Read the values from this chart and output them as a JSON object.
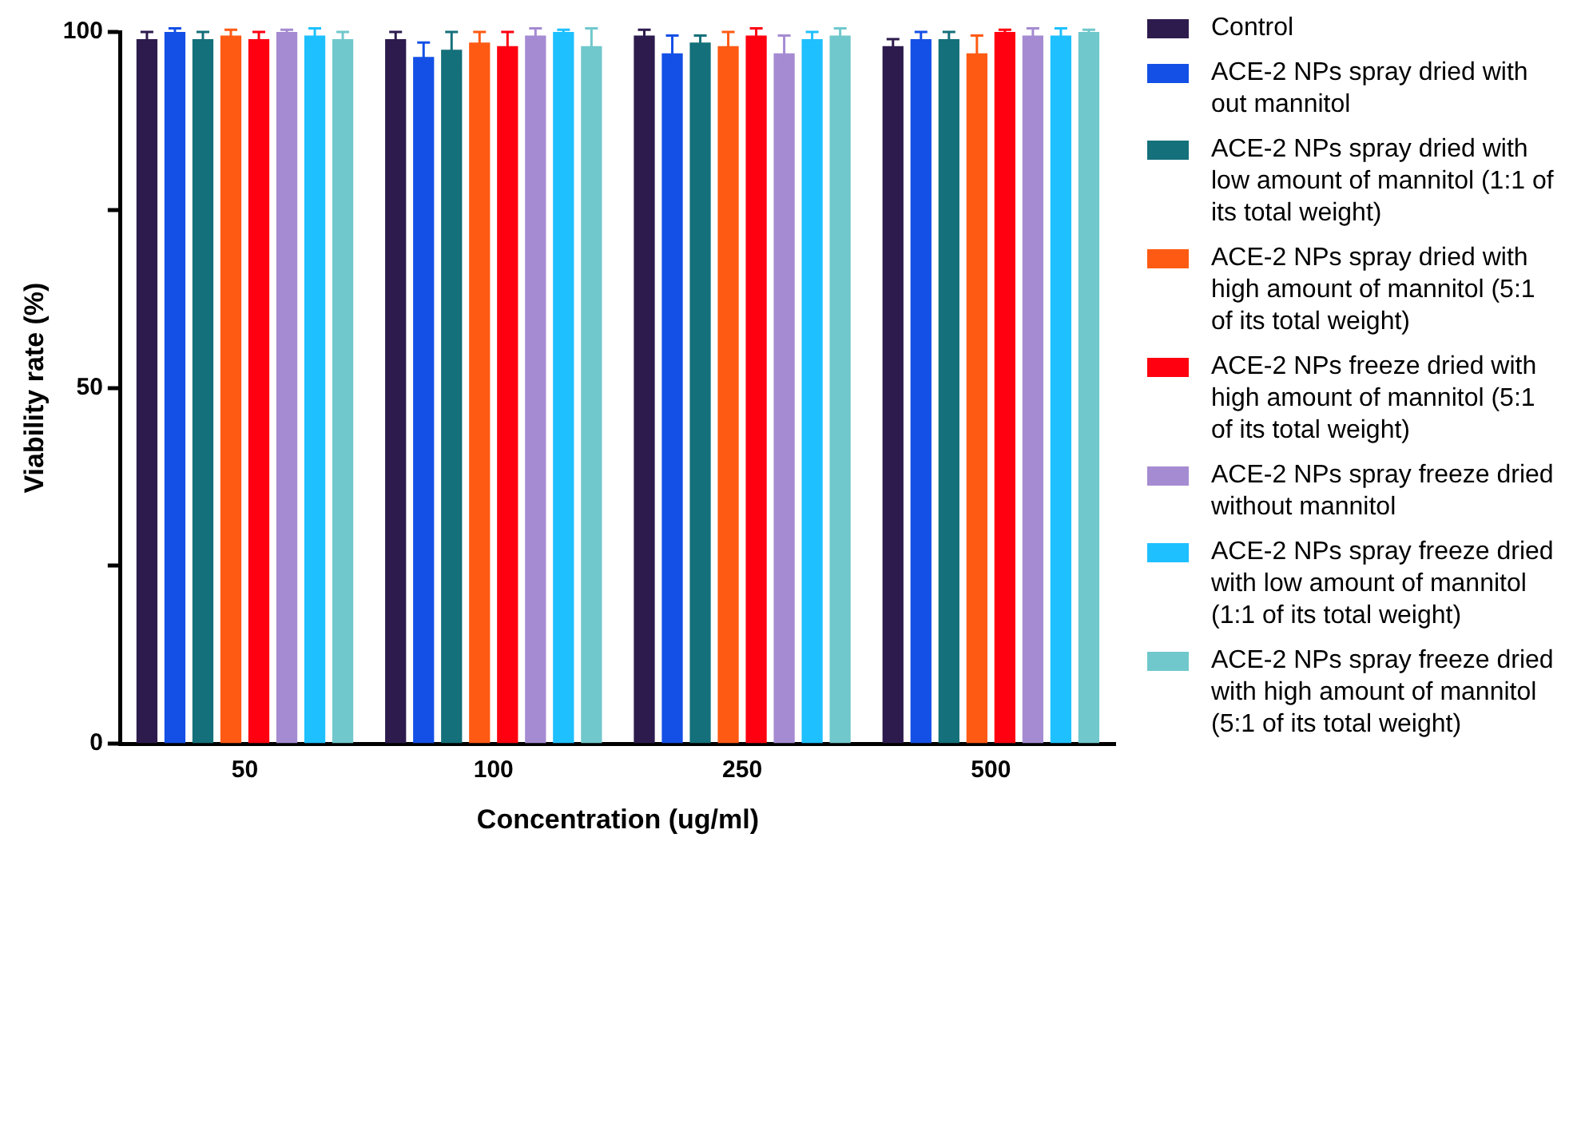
{
  "chart_data": {
    "type": "bar",
    "xlabel": "Concentration (ug/ml)",
    "ylabel": "Viability rate (%)",
    "categories": [
      "50",
      "100",
      "250",
      "500"
    ],
    "ylim": [
      0,
      100
    ],
    "yticks": [
      0,
      {
        "value": 25,
        "label": null
      },
      50,
      {
        "value": 75,
        "label": null
      },
      100
    ],
    "grid": false,
    "legend": "right",
    "series": [
      {
        "name": "Control",
        "color": "#2d1b4e",
        "values": [
          99,
          99,
          99.5,
          98
        ],
        "errors": [
          1,
          1,
          0.8,
          1
        ]
      },
      {
        "name": "ACE-2 NPs spray dried with out mannitol",
        "color": "#1450e6",
        "values": [
          100,
          96.5,
          97,
          99
        ],
        "errors": [
          0.5,
          2,
          2.5,
          1
        ]
      },
      {
        "name": "ACE-2 NPs spray dried with low amount of mannitol (1:1 of its total weight)",
        "color": "#14707a",
        "values": [
          99,
          97.5,
          98.5,
          99
        ],
        "errors": [
          1,
          2.5,
          1,
          1
        ]
      },
      {
        "name": "ACE-2 NPs spray dried with high amount of mannitol (5:1 of its total weight)",
        "color": "#ff5a14",
        "values": [
          99.5,
          98.5,
          98,
          97
        ],
        "errors": [
          0.8,
          1.5,
          2,
          2.5
        ]
      },
      {
        "name": "ACE-2 NPs freeze dried with high amount of mannitol (5:1 of its total weight)",
        "color": "#ff0010",
        "values": [
          99,
          98,
          99.5,
          100
        ],
        "errors": [
          1,
          2,
          1,
          0.3
        ]
      },
      {
        "name": "ACE-2 NPs spray freeze dried without mannitol",
        "color": "#a58bd2",
        "values": [
          100,
          99.5,
          97,
          99.5
        ],
        "errors": [
          0.3,
          1,
          2.5,
          1
        ]
      },
      {
        "name": "ACE-2 NPs spray freeze dried with low amount of mannitol (1:1 of its total weight)",
        "color": "#1ec0ff",
        "values": [
          99.5,
          100,
          99,
          99.5
        ],
        "errors": [
          1,
          0.3,
          1,
          1
        ]
      },
      {
        "name": "ACE-2 NPs spray freeze dried with high amount of mannitol (5:1 of its total weight)",
        "color": "#70c8cc",
        "values": [
          99,
          98,
          99.5,
          100
        ],
        "errors": [
          1,
          2.5,
          1,
          0.3
        ]
      }
    ]
  }
}
